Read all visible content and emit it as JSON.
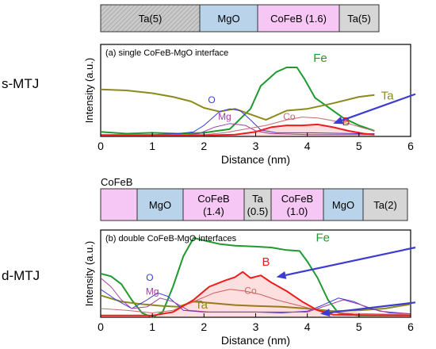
{
  "top": {
    "row_label": "s-MTJ",
    "stack": [
      {
        "label": "Ta(5)",
        "fill": "#cfcfcf",
        "hatch": true
      },
      {
        "label": "MgO",
        "fill": "#b9d4ea"
      },
      {
        "label": "CoFeB (1.6)",
        "fill": "#f6c6f4"
      },
      {
        "label": "Ta(5)",
        "fill": "#d6d6d6"
      }
    ]
  },
  "bottom": {
    "row_label": "d-MTJ",
    "stack_caption": "CoFeB",
    "stack": [
      {
        "label": "",
        "fill": "#f6c6f4"
      },
      {
        "label": "MgO",
        "fill": "#b9d4ea"
      },
      {
        "label": "CoFeB\n(1.4)",
        "fill": "#f6c6f4"
      },
      {
        "label": "Ta\n(0.5)",
        "fill": "#d6d6d6"
      },
      {
        "label": "CoFeB\n(1.0)",
        "fill": "#f6c6f4"
      },
      {
        "label": "MgO",
        "fill": "#b9d4ea"
      },
      {
        "label": "Ta(2)",
        "fill": "#d6d6d6"
      }
    ]
  },
  "colors": {
    "Fe": "#1f9a2f",
    "Ta": "#8b8a1a",
    "O": "#3a3adf",
    "Mg": "#a03fa0",
    "Co": "#c46a6a",
    "B": "#ee1c1c",
    "arrow": "#3c3cd0"
  },
  "chart_data": [
    {
      "type": "line",
      "title": "(a) single CoFeB-MgO interface",
      "xlabel": "Distance (nm)",
      "ylabel": "Intensity (a.u.)",
      "xlim": [
        0,
        6
      ],
      "ylim": [
        0,
        1
      ],
      "x_ticks": [
        "0",
        "1",
        "2",
        "3",
        "4",
        "5",
        "6"
      ],
      "grid": false,
      "series": [
        {
          "name": "Fe",
          "color_key": "Fe",
          "points": [
            [
              0,
              0.05
            ],
            [
              0.5,
              0.03
            ],
            [
              1,
              0.04
            ],
            [
              1.5,
              0.03
            ],
            [
              2,
              0.04
            ],
            [
              2.5,
              0.08
            ],
            [
              2.9,
              0.3
            ],
            [
              3.1,
              0.55
            ],
            [
              3.4,
              0.7
            ],
            [
              3.6,
              0.75
            ],
            [
              3.8,
              0.75
            ],
            [
              3.95,
              0.62
            ],
            [
              4.15,
              0.42
            ],
            [
              4.4,
              0.32
            ],
            [
              4.7,
              0.2
            ],
            [
              5.0,
              0.12
            ],
            [
              5.3,
              0.06
            ]
          ]
        },
        {
          "name": "Ta",
          "color_key": "Ta",
          "points": [
            [
              0,
              0.51
            ],
            [
              0.5,
              0.5
            ],
            [
              1,
              0.47
            ],
            [
              1.4,
              0.43
            ],
            [
              1.75,
              0.38
            ],
            [
              2.0,
              0.31
            ],
            [
              2.3,
              0.27
            ],
            [
              2.6,
              0.3
            ],
            [
              2.9,
              0.24
            ],
            [
              3.2,
              0.18
            ],
            [
              3.6,
              0.28
            ],
            [
              4.0,
              0.3
            ],
            [
              4.5,
              0.36
            ],
            [
              5.0,
              0.43
            ],
            [
              5.3,
              0.45
            ]
          ]
        },
        {
          "name": "O",
          "color_key": "O",
          "points": [
            [
              0,
              0.02
            ],
            [
              1,
              0.02
            ],
            [
              1.5,
              0.03
            ],
            [
              1.8,
              0.05
            ],
            [
              2.0,
              0.12
            ],
            [
              2.3,
              0.27
            ],
            [
              2.5,
              0.3
            ],
            [
              2.7,
              0.28
            ],
            [
              2.9,
              0.18
            ],
            [
              3.1,
              0.07
            ],
            [
              3.4,
              0.04
            ],
            [
              4,
              0.04
            ],
            [
              5,
              0.03
            ],
            [
              5.3,
              0.03
            ]
          ]
        },
        {
          "name": "Mg",
          "color_key": "Mg",
          "points": [
            [
              0,
              0.01
            ],
            [
              1.5,
              0.01
            ],
            [
              1.9,
              0.03
            ],
            [
              2.2,
              0.1
            ],
            [
              2.5,
              0.14
            ],
            [
              2.8,
              0.12
            ],
            [
              3.0,
              0.06
            ],
            [
              3.3,
              0.03
            ],
            [
              4,
              0.02
            ],
            [
              5.3,
              0.02
            ]
          ]
        },
        {
          "name": "Co",
          "color_key": "Co",
          "points": [
            [
              0,
              0.02
            ],
            [
              2.0,
              0.02
            ],
            [
              2.4,
              0.04
            ],
            [
              2.8,
              0.08
            ],
            [
              3.2,
              0.12
            ],
            [
              3.6,
              0.18
            ],
            [
              3.9,
              0.21
            ],
            [
              4.2,
              0.2
            ],
            [
              4.5,
              0.17
            ],
            [
              4.8,
              0.14
            ],
            [
              5.1,
              0.09
            ],
            [
              5.3,
              0.06
            ]
          ]
        },
        {
          "name": "B",
          "color_key": "B",
          "points": [
            [
              0,
              0.01
            ],
            [
              2.0,
              0.01
            ],
            [
              2.6,
              0.02
            ],
            [
              3.0,
              0.05
            ],
            [
              3.3,
              0.1
            ],
            [
              3.6,
              0.12
            ],
            [
              3.9,
              0.12
            ],
            [
              4.2,
              0.13
            ],
            [
              4.5,
              0.1
            ],
            [
              4.8,
              0.06
            ],
            [
              5.1,
              0.03
            ],
            [
              5.3,
              0.02
            ]
          ]
        }
      ],
      "labels": [
        {
          "text": "Fe",
          "x": 4.25,
          "y": 0.81,
          "color_key": "Fe"
        },
        {
          "text": "Ta",
          "x": 5.55,
          "y": 0.4,
          "color_key": "Ta"
        },
        {
          "text": "O",
          "x": 2.15,
          "y": 0.36,
          "color_key": "O"
        },
        {
          "text": "Mg",
          "x": 2.4,
          "y": 0.18,
          "color_key": "Mg"
        },
        {
          "text": "Co",
          "x": 3.65,
          "y": 0.18,
          "color_key": "Co"
        },
        {
          "text": "B",
          "x": 4.75,
          "y": 0.12,
          "color_key": "B"
        }
      ],
      "arrows": [
        {
          "from": [
            6.0,
            0.46
          ],
          "to": [
            4.5,
            0.14
          ]
        }
      ]
    },
    {
      "type": "line",
      "title": "(b) double CoFeB-MgO interfaces",
      "xlabel": "Distance (nm)",
      "ylabel": "Intensity (a.u.)",
      "xlim": [
        0,
        6
      ],
      "ylim": [
        0,
        1
      ],
      "x_ticks": [
        "0",
        "1",
        "2",
        "3",
        "4",
        "5",
        "6"
      ],
      "grid": false,
      "series": [
        {
          "name": "Fe",
          "color_key": "Fe",
          "points": [
            [
              0,
              0.5
            ],
            [
              0.2,
              0.47
            ],
            [
              0.4,
              0.38
            ],
            [
              0.6,
              0.2
            ],
            [
              0.8,
              0.05
            ],
            [
              1.0,
              0.0
            ],
            [
              1.2,
              0.06
            ],
            [
              1.4,
              0.35
            ],
            [
              1.6,
              0.7
            ],
            [
              1.8,
              0.91
            ],
            [
              2.0,
              0.88
            ],
            [
              2.3,
              0.84
            ],
            [
              2.6,
              0.82
            ],
            [
              3.0,
              0.81
            ],
            [
              3.3,
              0.8
            ],
            [
              3.6,
              0.77
            ],
            [
              3.85,
              0.76
            ],
            [
              4.0,
              0.64
            ],
            [
              4.2,
              0.45
            ],
            [
              4.4,
              0.2
            ],
            [
              4.6,
              0.05
            ],
            [
              5.0,
              0.02
            ],
            [
              6,
              0.02
            ]
          ]
        },
        {
          "name": "Ta",
          "color_key": "Ta",
          "points": [
            [
              0,
              0.25
            ],
            [
              0.4,
              0.18
            ],
            [
              0.8,
              0.15
            ],
            [
              1.2,
              0.13
            ],
            [
              1.5,
              0.12
            ],
            [
              1.8,
              0.18
            ],
            [
              2.2,
              0.16
            ],
            [
              2.6,
              0.14
            ],
            [
              3.0,
              0.13
            ],
            [
              3.5,
              0.12
            ],
            [
              4.0,
              0.1
            ],
            [
              4.5,
              0.07
            ],
            [
              5.0,
              0.08
            ],
            [
              5.5,
              0.1
            ],
            [
              6.0,
              0.15
            ]
          ]
        },
        {
          "name": "O",
          "color_key": "O",
          "points": [
            [
              0,
              0.32
            ],
            [
              0.3,
              0.2
            ],
            [
              0.6,
              0.1
            ],
            [
              0.9,
              0.2
            ],
            [
              1.1,
              0.28
            ],
            [
              1.3,
              0.24
            ],
            [
              1.6,
              0.08
            ],
            [
              2.0,
              0.06
            ],
            [
              2.5,
              0.06
            ],
            [
              3.0,
              0.06
            ],
            [
              3.5,
              0.05
            ],
            [
              4.0,
              0.07
            ],
            [
              4.3,
              0.14
            ],
            [
              4.6,
              0.22
            ],
            [
              4.9,
              0.18
            ],
            [
              5.2,
              0.1
            ],
            [
              5.6,
              0.05
            ],
            [
              6,
              0.04
            ]
          ]
        },
        {
          "name": "Mg",
          "color_key": "Mg",
          "points": [
            [
              0,
              0.45
            ],
            [
              0.2,
              0.35
            ],
            [
              0.4,
              0.2
            ],
            [
              0.6,
              0.1
            ],
            [
              0.9,
              0.12
            ],
            [
              1.15,
              0.22
            ],
            [
              1.4,
              0.18
            ],
            [
              1.7,
              0.08
            ],
            [
              2.1,
              0.06
            ],
            [
              3.0,
              0.06
            ],
            [
              4.0,
              0.06
            ],
            [
              4.4,
              0.14
            ],
            [
              4.7,
              0.2
            ],
            [
              5.0,
              0.15
            ],
            [
              5.4,
              0.07
            ],
            [
              6,
              0.04
            ]
          ]
        },
        {
          "name": "Co",
          "color_key": "Co",
          "points": [
            [
              0,
              0.1
            ],
            [
              0.5,
              0.08
            ],
            [
              1.0,
              0.05
            ],
            [
              1.4,
              0.08
            ],
            [
              1.8,
              0.18
            ],
            [
              2.2,
              0.28
            ],
            [
              2.5,
              0.32
            ],
            [
              2.8,
              0.3
            ],
            [
              3.1,
              0.26
            ],
            [
              3.4,
              0.2
            ],
            [
              3.8,
              0.14
            ],
            [
              4.2,
              0.08
            ],
            [
              4.6,
              0.05
            ],
            [
              5.2,
              0.04
            ],
            [
              6,
              0.03
            ]
          ]
        },
        {
          "name": "B",
          "color_key": "B",
          "points": [
            [
              0,
              0.02
            ],
            [
              1.0,
              0.02
            ],
            [
              1.4,
              0.06
            ],
            [
              1.8,
              0.2
            ],
            [
              2.1,
              0.35
            ],
            [
              2.4,
              0.42
            ],
            [
              2.6,
              0.46
            ],
            [
              2.75,
              0.52
            ],
            [
              2.9,
              0.45
            ],
            [
              3.1,
              0.48
            ],
            [
              3.3,
              0.4
            ],
            [
              3.6,
              0.3
            ],
            [
              3.9,
              0.18
            ],
            [
              4.2,
              0.08
            ],
            [
              4.5,
              0.03
            ],
            [
              6,
              0.02
            ]
          ]
        }
      ],
      "labels": [
        {
          "text": "Fe",
          "x": 4.3,
          "y": 0.87,
          "color_key": "Fe"
        },
        {
          "text": "B",
          "x": 3.2,
          "y": 0.59,
          "color_key": "B"
        },
        {
          "text": "O",
          "x": 0.95,
          "y": 0.42,
          "color_key": "O"
        },
        {
          "text": "Mg",
          "x": 1.0,
          "y": 0.26,
          "color_key": "Mg"
        },
        {
          "text": "Co",
          "x": 2.9,
          "y": 0.27,
          "color_key": "Co"
        },
        {
          "text": "Ta",
          "x": 1.95,
          "y": 0.1,
          "color_key": "Ta"
        }
      ],
      "arrows": [
        {
          "from": [
            6.0,
            0.8
          ],
          "to": [
            3.4,
            0.46
          ]
        },
        {
          "from": [
            6.0,
            0.17
          ],
          "to": [
            4.25,
            0.04
          ]
        }
      ]
    }
  ]
}
